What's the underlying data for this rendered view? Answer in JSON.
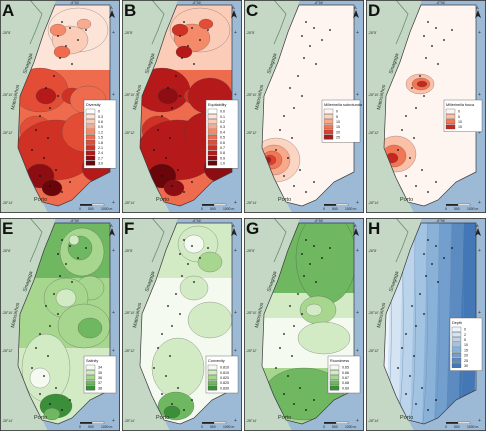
{
  "place_labels": {
    "city": "Porto",
    "coast_town": "Matosinhos",
    "north_town": "Sinagoga"
  },
  "coordinate_labels": {
    "longitude_top": "-8°56'",
    "lat_1": "-28°8'",
    "lat_2": "-28°10'",
    "lat_3": "-28°12'",
    "lat_4": "-28°14'"
  },
  "north_arrow": "A",
  "scale_bar": {
    "zero": "0",
    "mid": "500",
    "end": "1000 m"
  },
  "colors": {
    "sea": "#9cb9d6",
    "land": "#c5d7c5",
    "frame": "#333333"
  },
  "panels": [
    {
      "letter": "A",
      "legend": {
        "title": "Diversity",
        "items": [
          "0",
          "0.3",
          "0.6",
          "0.9",
          "1.2",
          "1.5",
          "1.8",
          "2.1",
          "2.4",
          "2.7",
          "3.0"
        ]
      },
      "colors": [
        "#ffffff",
        "#fde4d8",
        "#fbcdb8",
        "#f8ab8e",
        "#f58a6a",
        "#ee6b4e",
        "#e34d36",
        "#cf3124",
        "#b5191a",
        "#8e0d12",
        "#6a0509"
      ]
    },
    {
      "letter": "B",
      "legend": {
        "title": "Equitability",
        "items": [
          "0.0",
          "0.1",
          "0.2",
          "0.3",
          "0.4",
          "0.5",
          "0.6",
          "0.7",
          "0.8",
          "0.9",
          "1.0"
        ]
      },
      "colors": [
        "#ffffff",
        "#fde4d8",
        "#fbcdb8",
        "#f8ab8e",
        "#f58a6a",
        "#ee6b4e",
        "#e34d36",
        "#cf3124",
        "#b5191a",
        "#8e0d12",
        "#6a0509"
      ]
    },
    {
      "letter": "C",
      "legend": {
        "title": "Millerinella subrotunda",
        "items": [
          "0",
          "5",
          "10",
          "15",
          "20",
          "25"
        ]
      },
      "colors": [
        "#fff5f0",
        "#fcd4c2",
        "#f9a889",
        "#f07655",
        "#d9412e",
        "#a81e1e"
      ]
    },
    {
      "letter": "D",
      "legend": {
        "title": "Millerinella fusca",
        "items": [
          "0",
          "5",
          "10",
          "15"
        ]
      },
      "colors": [
        "#fff5f0",
        "#fbc0a8",
        "#f07655",
        "#c4281f"
      ]
    },
    {
      "letter": "E",
      "legend": {
        "title": "Salinity",
        "items": [
          "34",
          "35",
          "36",
          "37",
          "38"
        ]
      },
      "colors": [
        "#f4faef",
        "#d2ebc4",
        "#a7d68f",
        "#6fb760",
        "#3c8f3a"
      ]
    },
    {
      "letter": "F",
      "legend": {
        "title": "Convexity",
        "items": [
          "0.810",
          "0.815",
          "0.820",
          "0.825",
          "0.830"
        ]
      },
      "colors": [
        "#f4faef",
        "#d2ebc4",
        "#a7d68f",
        "#6fb760",
        "#3c8f3a"
      ]
    },
    {
      "letter": "G",
      "legend": {
        "title": "Roundness",
        "items": [
          "0.65",
          "0.66",
          "0.67",
          "0.68",
          "0.69"
        ]
      },
      "colors": [
        "#f4faef",
        "#d2ebc4",
        "#a7d68f",
        "#6fb760",
        "#3c8f3a"
      ]
    },
    {
      "letter": "H",
      "legend": {
        "title": "Depth",
        "items": [
          "0",
          "2",
          "5",
          "10",
          "15",
          "20",
          "25",
          "30"
        ]
      },
      "colors": [
        "#eef4fb",
        "#d5e4f3",
        "#bcd4eb",
        "#a3c3e2",
        "#8ab2d9",
        "#739fce",
        "#5c8bc2",
        "#4477b5"
      ]
    }
  ]
}
